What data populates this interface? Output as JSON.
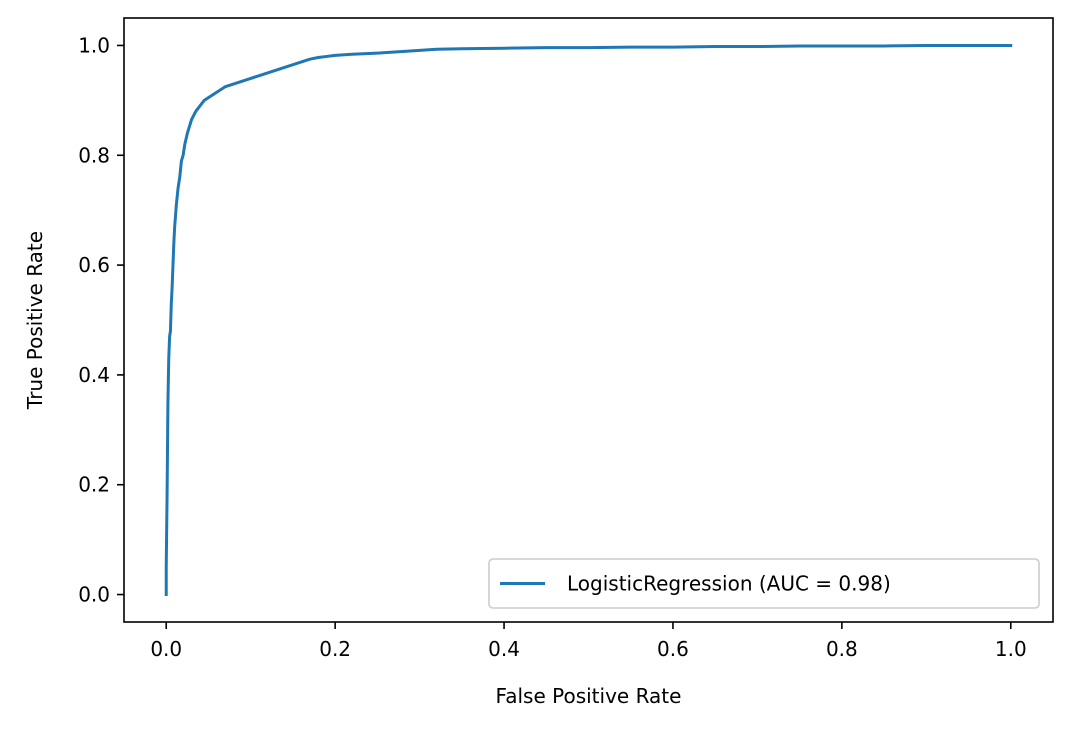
{
  "chart_data": {
    "type": "line",
    "title": "",
    "xlabel": "False Positive Rate",
    "ylabel": "True Positive Rate",
    "xlim": [
      -0.05,
      1.05
    ],
    "ylim": [
      -0.05,
      1.05
    ],
    "xticks": [
      0.0,
      0.2,
      0.4,
      0.6,
      0.8,
      1.0
    ],
    "yticks": [
      0.0,
      0.2,
      0.4,
      0.6,
      0.8,
      1.0
    ],
    "xtick_labels": [
      "0.0",
      "0.2",
      "0.4",
      "0.6",
      "0.8",
      "1.0"
    ],
    "ytick_labels": [
      "0.0",
      "0.2",
      "0.4",
      "0.6",
      "0.8",
      "1.0"
    ],
    "grid": false,
    "legend": {
      "position": "lower right",
      "entries": [
        "LogisticRegression (AUC = 0.98)"
      ]
    },
    "series": [
      {
        "name": "LogisticRegression (AUC = 0.98)",
        "color": "#1f77b4",
        "x": [
          0.0,
          0.0,
          0.001,
          0.002,
          0.003,
          0.004,
          0.005,
          0.006,
          0.007,
          0.008,
          0.009,
          0.01,
          0.012,
          0.014,
          0.016,
          0.018,
          0.02,
          0.022,
          0.025,
          0.028,
          0.03,
          0.035,
          0.04,
          0.045,
          0.05,
          0.06,
          0.07,
          0.08,
          0.09,
          0.1,
          0.11,
          0.12,
          0.13,
          0.14,
          0.15,
          0.16,
          0.17,
          0.18,
          0.19,
          0.2,
          0.22,
          0.25,
          0.28,
          0.3,
          0.32,
          0.35,
          0.4,
          0.45,
          0.5,
          0.55,
          0.6,
          0.65,
          0.7,
          0.75,
          0.8,
          0.85,
          0.9,
          0.95,
          1.0
        ],
        "y": [
          0.0,
          0.05,
          0.18,
          0.35,
          0.43,
          0.47,
          0.48,
          0.53,
          0.56,
          0.6,
          0.64,
          0.67,
          0.71,
          0.74,
          0.76,
          0.79,
          0.8,
          0.82,
          0.84,
          0.855,
          0.865,
          0.88,
          0.89,
          0.9,
          0.905,
          0.915,
          0.925,
          0.93,
          0.935,
          0.94,
          0.945,
          0.95,
          0.955,
          0.96,
          0.965,
          0.97,
          0.975,
          0.978,
          0.98,
          0.982,
          0.984,
          0.986,
          0.989,
          0.991,
          0.993,
          0.994,
          0.995,
          0.996,
          0.996,
          0.997,
          0.997,
          0.998,
          0.998,
          0.999,
          0.999,
          0.999,
          1.0,
          1.0,
          1.0
        ]
      }
    ]
  }
}
